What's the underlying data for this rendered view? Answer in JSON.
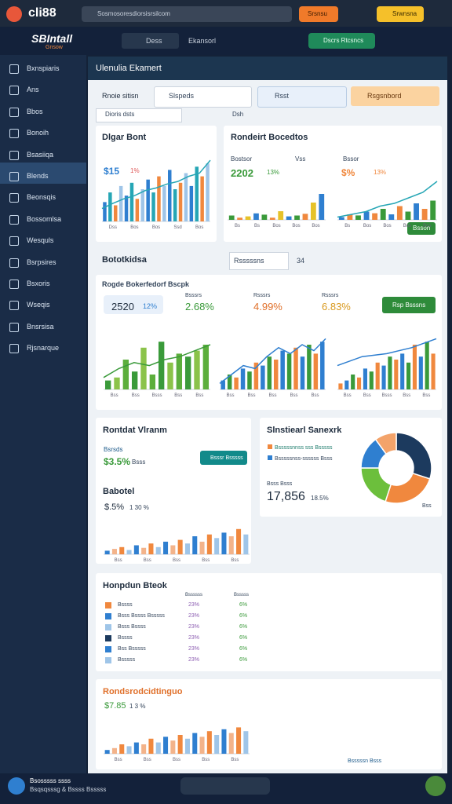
{
  "browser": {
    "brand": "cli88",
    "address": "Sosmosoresdiorsisrsilcom",
    "button_1": "Srsnsu",
    "button_2": "Srwnsna"
  },
  "app": {
    "logo": "SBIntall",
    "logo_sub": "Gnsow",
    "nav_1": "Dess",
    "nav_2": "Ekansorl",
    "action": "Dscrs Rtcsncs"
  },
  "sidebar": [
    "Bxnspiaris",
    "Ans",
    "Bbos",
    "Bonoih",
    "Bsasiiqa",
    "Blends",
    "Beonsqis",
    "Bossomlsa",
    "Wesquls",
    "Bsrpsires",
    "Bsxoris",
    "Wseqis",
    "Bnsrsisa",
    "Rjsnarque"
  ],
  "panel": {
    "title": "Ulenulia Ekamert",
    "filter_1": "Rnoie sitisn",
    "filter_2": "Slspeds",
    "filter_3": "Rsst",
    "filter_4": "Rsgsnbord",
    "sub_1": "Dioris dsts",
    "sub_2": "Dsh"
  },
  "cards": [
    {
      "title": "Dlgar Bont",
      "stat": "$15",
      "delta": "1%"
    },
    {
      "title": "Rondeirt Bocedtos",
      "label_1": "Bostsor",
      "stat_1": "2202",
      "delta_1": "13%",
      "label_2": "Vss",
      "label_3": "Bssor",
      "stat_2": "$%",
      "delta_2": "13%",
      "button": "Bsson"
    },
    {
      "title": "Bototkidsa",
      "select": "Rsssssns",
      "count": "34",
      "subtitle": "Rogde Bokerfedorf Bscpk",
      "stat_1": "2520",
      "delta_1": "12%",
      "label_2": "Bsssrs",
      "stat_2": "2.68%",
      "label_3": "Rsssrs",
      "stat_3": "4.99%",
      "label_4": "Rsssrs",
      "stat_4": "6.83%",
      "button": "Rsp Bsssns"
    },
    {
      "title": "Rontdat Vlranm",
      "label": "Bsrsds",
      "stat": "$3.5%",
      "delta": "Bsss",
      "button": "Bsssr Bsssss"
    },
    {
      "title": "Slnstiearl Sanexrk",
      "legend_1": "Bsssssnnss sss Bsssss",
      "legend_2": "Bsssssnss-ssssss Bsss",
      "label": "Bsss Bsss",
      "stat": "17,856",
      "delta": "18.5%",
      "foot": "Bss"
    },
    {
      "title": "Babotel",
      "stat": "$.5%",
      "delta": "1 30 %"
    },
    {
      "title": "Honpdun Bteok",
      "col_1": "Bssssss",
      "col_2": "Bsssss",
      "rows": [
        [
          "Bssss",
          "23%",
          "6%"
        ],
        [
          "Bsss Bssss Bsssss",
          "23%",
          "6%"
        ],
        [
          "Bsss Bssss",
          "23%",
          "6%"
        ],
        [
          "Bssss",
          "23%",
          "6%"
        ],
        [
          "Bss Bsssss",
          "23%",
          "6%"
        ],
        [
          "Bsssss",
          "23%",
          "6%"
        ]
      ]
    },
    {
      "title": "Rondsrodcidtinguo",
      "stat": "$7.85",
      "delta": "1 3 %",
      "status": "Bsssssn Bsss"
    }
  ],
  "footer": {
    "line_1": "Bsosssss ssss",
    "line_2": "Bsqsqsssg & Bssss Bsssss"
  },
  "charts": [
    {
      "type": "bar",
      "ylim": [
        0,
        100
      ],
      "palette": [
        "#2f7fd0",
        "#26a6b5",
        "#f0883e",
        "#9fc5e8"
      ],
      "values": [
        30,
        45,
        25,
        55,
        40,
        60,
        35,
        50,
        65,
        45,
        70,
        55,
        80,
        50,
        60,
        75,
        55,
        85,
        70,
        90
      ],
      "line": [
        20,
        28,
        35,
        40,
        48,
        52,
        58,
        62,
        70,
        75,
        95
      ],
      "line_color": "#26a6b5",
      "labels": [
        "Dss",
        "Bos",
        "Bos",
        "Ssd",
        "Bos"
      ]
    },
    {
      "type": "bar",
      "ylim": [
        0,
        100
      ],
      "palette": [
        "#3a9a3a",
        "#f0883e",
        "#e6c229",
        "#2f7fd0"
      ],
      "values": [
        10,
        5,
        8,
        15,
        12,
        5,
        20,
        8,
        10,
        14,
        40,
        60
      ],
      "labels": [
        "Bs",
        "Bs",
        "Bos",
        "Bos",
        "Bos"
      ]
    },
    {
      "type": "bar",
      "ylim": [
        0,
        100
      ],
      "palette": [
        "#2f7fd0",
        "#f0883e",
        "#3a9a3a"
      ],
      "values": [
        5,
        10,
        8,
        15,
        12,
        20,
        10,
        25,
        15,
        30,
        20,
        35
      ],
      "line": [
        5,
        10,
        15,
        25,
        30,
        40,
        50,
        70
      ],
      "line_color": "#26a6b5",
      "labels": [
        "Bs",
        "Bos",
        "Bos",
        "Bos",
        "Bos"
      ]
    },
    {
      "type": "bar",
      "ylim": [
        0,
        100
      ],
      "palette": [
        "#3a9a3a",
        "#8bc34a",
        "#5cae3c"
      ],
      "values": [
        15,
        20,
        50,
        30,
        70,
        25,
        80,
        45,
        60,
        55,
        65,
        75
      ],
      "line": [
        20,
        35,
        45,
        40,
        50,
        55,
        65,
        75
      ],
      "line_color": "#3a9a3a",
      "labels": [
        "Bss",
        "Bss",
        "Bsss",
        "Bss",
        "Bss"
      ]
    },
    {
      "type": "bar",
      "ylim": [
        0,
        100
      ],
      "palette": [
        "#2f7fd0",
        "#3a9a3a",
        "#f0883e"
      ],
      "values": [
        15,
        25,
        20,
        35,
        30,
        45,
        40,
        55,
        50,
        65,
        60,
        70,
        55,
        75,
        60,
        80
      ],
      "line": [
        10,
        25,
        40,
        35,
        55,
        70,
        60,
        75,
        65,
        85
      ],
      "line_color": "#2f7fd0",
      "labels": [
        "Bss",
        "Bss",
        "Bss",
        "Bss",
        "Bss"
      ]
    },
    {
      "type": "bar",
      "ylim": [
        0,
        100
      ],
      "palette": [
        "#f0883e",
        "#2f7fd0",
        "#3a9a3a"
      ],
      "values": [
        10,
        15,
        25,
        20,
        35,
        30,
        45,
        40,
        55,
        50,
        60,
        45,
        75,
        55,
        80,
        60
      ],
      "line": [
        40,
        55,
        60,
        70,
        85
      ],
      "line_color": "#2f7fd0",
      "labels": [
        "Bss",
        "Bss",
        "Bsss",
        "Bss",
        "Bss"
      ]
    },
    {
      "type": "bar",
      "ylim": [
        0,
        100
      ],
      "palette": [
        "#2f7fd0",
        "#f3b38a",
        "#f0883e",
        "#9fc5e8"
      ],
      "values": [
        10,
        15,
        20,
        12,
        25,
        18,
        30,
        20,
        35,
        25,
        40,
        30,
        50,
        35,
        55,
        45,
        60,
        50,
        70,
        55
      ],
      "labels": [
        "Bss",
        "Bss",
        "Bss",
        "Bss",
        "Bss"
      ]
    },
    {
      "type": "bar",
      "ylim": [
        0,
        100
      ],
      "palette": [
        "#2f7fd0",
        "#f3b38a",
        "#f0883e",
        "#9fc5e8"
      ],
      "values": [
        10,
        15,
        25,
        20,
        30,
        25,
        40,
        30,
        45,
        35,
        50,
        40,
        55,
        45,
        60,
        50,
        65,
        55,
        70,
        60
      ],
      "labels": [
        "Bss",
        "Bss",
        "Bss",
        "Bss",
        "Bss"
      ]
    },
    {
      "type": "pie",
      "values": [
        30,
        25,
        20,
        15,
        10
      ],
      "colors": [
        "#1c3a5e",
        "#f0883e",
        "#6cbf3c",
        "#2f7fd0",
        "#f3a36a"
      ]
    }
  ]
}
